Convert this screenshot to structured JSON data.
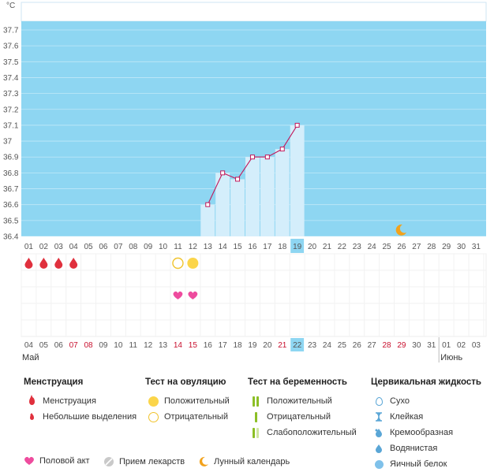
{
  "chart_data": {
    "type": "line",
    "unit_label": "°C",
    "ylim": [
      36.4,
      37.75
    ],
    "y_ticks": [
      "37.7",
      "37.6",
      "37.5",
      "37.4",
      "37.3",
      "37.2",
      "37.1",
      "37",
      "36.9",
      "36.8",
      "36.7",
      "36.6",
      "36.5",
      "36.4"
    ],
    "cycle_days": [
      "01",
      "02",
      "03",
      "04",
      "05",
      "06",
      "07",
      "08",
      "09",
      "10",
      "11",
      "12",
      "13",
      "14",
      "15",
      "16",
      "17",
      "18",
      "19",
      "20",
      "21",
      "22",
      "23",
      "24",
      "25",
      "26",
      "27",
      "28",
      "29",
      "30",
      "31"
    ],
    "highlight_day_index": 18,
    "temperature": [
      {
        "day_index": 12,
        "value": 36.6
      },
      {
        "day_index": 13,
        "value": 36.8
      },
      {
        "day_index": 14,
        "value": 36.76
      },
      {
        "day_index": 15,
        "value": 36.9
      },
      {
        "day_index": 16,
        "value": 36.9
      },
      {
        "day_index": 17,
        "value": 36.95
      },
      {
        "day_index": 18,
        "value": 37.1
      }
    ],
    "moon_day_index": 25
  },
  "events": {
    "menstruation_days": [
      0,
      1,
      2,
      3
    ],
    "ovulation_negative_days": [
      10
    ],
    "ovulation_positive_days": [
      11
    ],
    "intercourse_days": [
      10,
      11
    ]
  },
  "calendar": {
    "dates": [
      "04",
      "05",
      "06",
      "07",
      "08",
      "09",
      "10",
      "11",
      "12",
      "13",
      "14",
      "15",
      "16",
      "17",
      "18",
      "19",
      "20",
      "21",
      "22",
      "23",
      "24",
      "25",
      "26",
      "27",
      "28",
      "29",
      "30",
      "31",
      "01",
      "02",
      "03"
    ],
    "red_date_indices": [
      3,
      4,
      10,
      11,
      17,
      24,
      25
    ],
    "today_index": 18,
    "month_start": "Май",
    "month_next": "Июнь",
    "month_next_index": 28
  },
  "colors": {
    "chart_bg": "#8ed6f2",
    "bar_fill": "#d4eefb",
    "line": "#c2185b",
    "highlight": "#8ed6f2",
    "drop": "#e0303d",
    "ov_positive": "#fbd54a",
    "ov_negative": "#f0c32c",
    "heart": "#ee4c9e",
    "moon": "#f2a21c",
    "red_date": "#c8102e"
  },
  "legend": {
    "menstruation": {
      "title": "Менструация",
      "items": [
        "Менструация",
        "Небольшие выделения"
      ]
    },
    "ovulation_test": {
      "title": "Тест на овуляцию",
      "items": [
        "Положительный",
        "Отрицательный"
      ]
    },
    "pregnancy_test": {
      "title": "Тест на беременность",
      "items": [
        "Положительный",
        "Отрицательный",
        "Слабоположительный"
      ]
    },
    "cervical_fluid": {
      "title": "Цервикальная жидкость",
      "items": [
        "Сухо",
        "Клейкая",
        "Кремообразная",
        "Водянистая",
        "Яичный белок"
      ]
    },
    "bottom": {
      "intercourse": "Половой акт",
      "medication": "Прием лекарств",
      "lunar": "Лунный календарь"
    }
  }
}
